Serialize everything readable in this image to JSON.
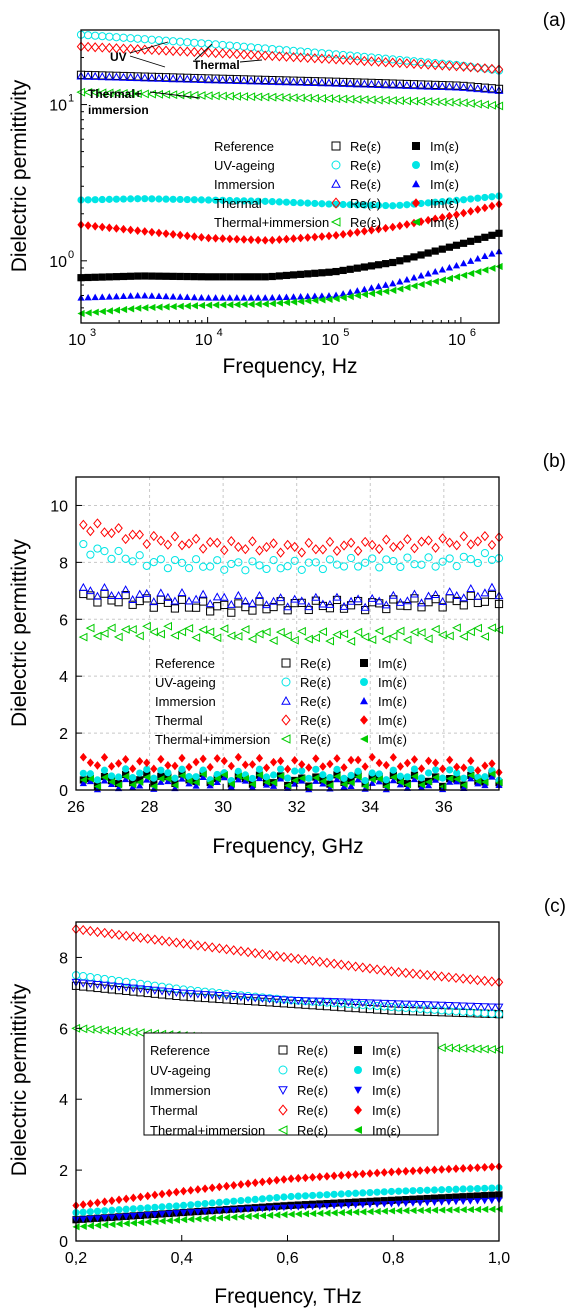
{
  "colors": {
    "reference": "#000000",
    "uv": "#00e5e5",
    "immersion": "#0000ff",
    "thermal": "#ff0000",
    "thermal_immersion": "#00cc00",
    "grid": "#c8c8c8",
    "axis": "#000000"
  },
  "chart_data": [
    {
      "panel_label": "(a)",
      "type": "scatter",
      "xlabel": "Frequency, Hz",
      "ylabel": "Dielectric permittivity",
      "x_scale": "log",
      "y_scale": "log",
      "xlim": [
        1000,
        2000000
      ],
      "ylim": [
        0.4,
        30
      ],
      "x_ticks": [
        {
          "v": 1000,
          "base": "10",
          "exp": "3"
        },
        {
          "v": 10000,
          "base": "10",
          "exp": "4"
        },
        {
          "v": 100000,
          "base": "10",
          "exp": "5"
        },
        {
          "v": 1000000,
          "base": "10",
          "exp": "6"
        }
      ],
      "y_ticks": [
        {
          "v": 1,
          "label": "10",
          "exp": "0"
        },
        {
          "v": 10,
          "label": "10",
          "exp": "1"
        }
      ],
      "grid": false,
      "legend_position": "center",
      "annotations": [
        {
          "text": "UV"
        },
        {
          "text": "Thermal"
        },
        {
          "text": "Thermal+"
        },
        {
          "text": "immersion"
        }
      ],
      "legend": [
        {
          "name": "Reference",
          "re_label": "Re(ε)",
          "im_label": "Im(ε)"
        },
        {
          "name": "UV-ageing",
          "re_label": "Re(ε)",
          "im_label": "Im(ε)"
        },
        {
          "name": "Immersion",
          "re_label": "Re(ε)",
          "im_label": "Im(ε)"
        },
        {
          "name": "Thermal",
          "re_label": "Re(ε)",
          "im_label": "Im(ε)"
        },
        {
          "name": "Thermal+immersion",
          "re_label": "Re(ε)",
          "im_label": "Im(ε)"
        }
      ],
      "series": [
        {
          "key": "reference",
          "part": "Re",
          "x": [
            1000,
            10000,
            100000,
            1000000,
            2000000
          ],
          "values": [
            15.5,
            14.7,
            14.0,
            13.2,
            12.6
          ]
        },
        {
          "key": "uv",
          "part": "Re",
          "x": [
            1000,
            10000,
            100000,
            1000000,
            2000000
          ],
          "values": [
            28.0,
            24.5,
            21.0,
            17.8,
            16.5
          ]
        },
        {
          "key": "immersion",
          "part": "Re",
          "x": [
            1000,
            10000,
            100000,
            1000000,
            2000000
          ],
          "values": [
            15.2,
            14.4,
            13.7,
            12.9,
            12.3
          ]
        },
        {
          "key": "thermal",
          "part": "Re",
          "x": [
            1000,
            10000,
            100000,
            1000000,
            2000000
          ],
          "values": [
            23.5,
            21.5,
            19.5,
            17.5,
            16.8
          ]
        },
        {
          "key": "thermal_immersion",
          "part": "Re",
          "x": [
            1000,
            10000,
            100000,
            1000000,
            2000000
          ],
          "values": [
            12.0,
            11.4,
            10.9,
            10.3,
            9.8
          ]
        },
        {
          "key": "reference",
          "part": "Im",
          "x": [
            1000,
            3000,
            10000,
            30000,
            100000,
            300000,
            1000000,
            2000000
          ],
          "values": [
            0.78,
            0.8,
            0.79,
            0.79,
            0.85,
            0.98,
            1.28,
            1.5
          ]
        },
        {
          "key": "uv",
          "part": "Im",
          "x": [
            1000,
            3000,
            10000,
            30000,
            100000,
            300000,
            1000000,
            2000000
          ],
          "values": [
            2.45,
            2.5,
            2.45,
            2.4,
            2.3,
            2.25,
            2.45,
            2.6
          ]
        },
        {
          "key": "immersion",
          "part": "Im",
          "x": [
            1000,
            3000,
            10000,
            30000,
            100000,
            300000,
            1000000,
            2000000
          ],
          "values": [
            0.58,
            0.6,
            0.58,
            0.58,
            0.6,
            0.72,
            0.95,
            1.15
          ]
        },
        {
          "key": "thermal",
          "part": "Im",
          "x": [
            1000,
            3000,
            10000,
            30000,
            100000,
            300000,
            1000000,
            2000000
          ],
          "values": [
            1.7,
            1.55,
            1.4,
            1.35,
            1.45,
            1.65,
            2.0,
            2.3
          ]
        },
        {
          "key": "thermal_immersion",
          "part": "Im",
          "x": [
            1000,
            3000,
            10000,
            30000,
            100000,
            300000,
            1000000,
            2000000
          ],
          "values": [
            0.46,
            0.5,
            0.52,
            0.53,
            0.57,
            0.65,
            0.8,
            0.92
          ]
        }
      ]
    },
    {
      "panel_label": "(b)",
      "type": "scatter",
      "xlabel": "Frequency, GHz",
      "ylabel": "Dielectric permittivty",
      "x_scale": "linear",
      "y_scale": "linear",
      "xlim": [
        26,
        37.5
      ],
      "ylim": [
        0,
        11
      ],
      "x_ticks": [
        26,
        28,
        30,
        32,
        34,
        36
      ],
      "y_ticks": [
        0,
        2,
        4,
        6,
        8,
        10
      ],
      "grid": true,
      "legend_position": "center-left",
      "legend": [
        {
          "name": "Reference",
          "re_label": "Re(ε)",
          "im_label": "Im(ε)"
        },
        {
          "name": "UV-ageing",
          "re_label": "Re(ε)",
          "im_label": "Im(ε)"
        },
        {
          "name": "Immersion",
          "re_label": "Re(ε)",
          "im_label": "Im(ε)"
        },
        {
          "name": "Thermal",
          "re_label": "Re(ε)",
          "im_label": "Im(ε)"
        },
        {
          "name": "Thermal+immersion",
          "re_label": "Re(ε)",
          "im_label": "Im(ε)"
        }
      ],
      "series": [
        {
          "key": "reference",
          "part": "Re",
          "x": [
            26.2,
            28,
            30,
            32,
            34,
            36,
            37.5
          ],
          "values": [
            6.8,
            6.6,
            6.4,
            6.5,
            6.5,
            6.6,
            6.7
          ]
        },
        {
          "key": "uv",
          "part": "Re",
          "x": [
            26.2,
            28,
            30,
            32,
            34,
            36,
            37.5
          ],
          "values": [
            8.5,
            8.0,
            7.9,
            7.9,
            8.0,
            8.0,
            8.2
          ]
        },
        {
          "key": "immersion",
          "part": "Re",
          "x": [
            26.2,
            28,
            30,
            32,
            34,
            36,
            37.5
          ],
          "values": [
            7.0,
            6.8,
            6.7,
            6.6,
            6.6,
            6.8,
            7.0
          ]
        },
        {
          "key": "thermal",
          "part": "Re",
          "x": [
            26.2,
            28,
            30,
            32,
            34,
            36,
            37.5
          ],
          "values": [
            9.3,
            8.8,
            8.6,
            8.5,
            8.6,
            8.7,
            8.8
          ]
        },
        {
          "key": "thermal_immersion",
          "part": "Re",
          "x": [
            26.2,
            28,
            30,
            32,
            34,
            36,
            37.5
          ],
          "values": [
            5.5,
            5.6,
            5.5,
            5.4,
            5.4,
            5.5,
            5.6
          ]
        },
        {
          "key": "reference",
          "part": "Im",
          "x": [
            26.2,
            28,
            30,
            32,
            34,
            36,
            37.5
          ],
          "values": [
            0.3,
            0.4,
            0.4,
            0.3,
            0.4,
            0.3,
            0.4
          ]
        },
        {
          "key": "uv",
          "part": "Im",
          "x": [
            26.2,
            28,
            30,
            32,
            34,
            36,
            37.5
          ],
          "values": [
            0.5,
            0.6,
            0.5,
            0.6,
            0.5,
            0.6,
            0.5
          ]
        },
        {
          "key": "immersion",
          "part": "Im",
          "x": [
            26.2,
            28,
            30,
            32,
            34,
            36,
            37.5
          ],
          "values": [
            0.2,
            0.2,
            0.3,
            0.2,
            0.2,
            0.2,
            0.3
          ]
        },
        {
          "key": "thermal",
          "part": "Im",
          "x": [
            26.2,
            28,
            30,
            32,
            34,
            36,
            37.5
          ],
          "values": [
            1.0,
            0.9,
            1.0,
            0.9,
            1.0,
            0.9,
            0.8
          ]
        },
        {
          "key": "thermal_immersion",
          "part": "Im",
          "x": [
            26.2,
            28,
            30,
            32,
            34,
            36,
            37.5
          ],
          "values": [
            0.3,
            0.3,
            0.4,
            0.3,
            0.3,
            0.3,
            0.4
          ]
        }
      ]
    },
    {
      "panel_label": "(c)",
      "type": "scatter",
      "xlabel": "Frequency, THz",
      "ylabel": "Dielectric permittivity",
      "x_scale": "linear",
      "y_scale": "linear",
      "xlim": [
        0.2,
        1.0
      ],
      "ylim": [
        0,
        9
      ],
      "x_ticks": [
        "0,2",
        "0,4",
        "0,6",
        "0,8",
        "1,0"
      ],
      "x_tick_values": [
        0.2,
        0.4,
        0.6,
        0.8,
        1.0
      ],
      "y_ticks": [
        0,
        2,
        4,
        6,
        8
      ],
      "grid": false,
      "legend_position": "center",
      "legend": [
        {
          "name": "Reference",
          "re_label": "Re(ε)",
          "im_label": "Im(ε)"
        },
        {
          "name": "UV-ageing",
          "re_label": "Re(ε)",
          "im_label": "Im(ε)"
        },
        {
          "name": "Immersion",
          "re_label": "Re(ε)",
          "im_label": "Im(ε)"
        },
        {
          "name": "Thermal",
          "re_label": "Re(ε)",
          "im_label": "Im(ε)"
        },
        {
          "name": "Thermal+immersion",
          "re_label": "Re(ε)",
          "im_label": "Im(ε)"
        }
      ],
      "series": [
        {
          "key": "reference",
          "part": "Re",
          "x": [
            0.2,
            0.4,
            0.6,
            0.8,
            1.0
          ],
          "values": [
            7.2,
            6.9,
            6.7,
            6.5,
            6.4
          ]
        },
        {
          "key": "uv",
          "part": "Re",
          "x": [
            0.2,
            0.4,
            0.6,
            0.8,
            1.0
          ],
          "values": [
            7.5,
            7.1,
            6.8,
            6.6,
            6.4
          ]
        },
        {
          "key": "immersion",
          "part": "Re",
          "x": [
            0.2,
            0.4,
            0.6,
            0.8,
            1.0
          ],
          "values": [
            7.3,
            7.0,
            6.8,
            6.7,
            6.6
          ]
        },
        {
          "key": "thermal",
          "part": "Re",
          "x": [
            0.2,
            0.4,
            0.6,
            0.8,
            1.0
          ],
          "values": [
            8.8,
            8.4,
            8.0,
            7.6,
            7.3
          ]
        },
        {
          "key": "thermal_immersion",
          "part": "Re",
          "x": [
            0.2,
            0.4,
            0.6,
            0.8,
            1.0
          ],
          "values": [
            6.0,
            5.8,
            5.6,
            5.5,
            5.4
          ]
        },
        {
          "key": "reference",
          "part": "Im",
          "x": [
            0.2,
            0.4,
            0.6,
            0.8,
            1.0
          ],
          "values": [
            0.6,
            0.8,
            1.0,
            1.15,
            1.3
          ]
        },
        {
          "key": "uv",
          "part": "Im",
          "x": [
            0.2,
            0.4,
            0.6,
            0.8,
            1.0
          ],
          "values": [
            0.8,
            1.0,
            1.25,
            1.4,
            1.5
          ]
        },
        {
          "key": "immersion",
          "part": "Im",
          "x": [
            0.2,
            0.4,
            0.6,
            0.8,
            1.0
          ],
          "values": [
            0.6,
            0.8,
            0.95,
            1.05,
            1.15
          ]
        },
        {
          "key": "thermal",
          "part": "Im",
          "x": [
            0.2,
            0.4,
            0.6,
            0.8,
            1.0
          ],
          "values": [
            1.0,
            1.4,
            1.75,
            1.95,
            2.1
          ]
        },
        {
          "key": "thermal_immersion",
          "part": "Im",
          "x": [
            0.2,
            0.4,
            0.6,
            0.8,
            1.0
          ],
          "values": [
            0.4,
            0.6,
            0.75,
            0.85,
            0.9
          ]
        }
      ]
    }
  ]
}
